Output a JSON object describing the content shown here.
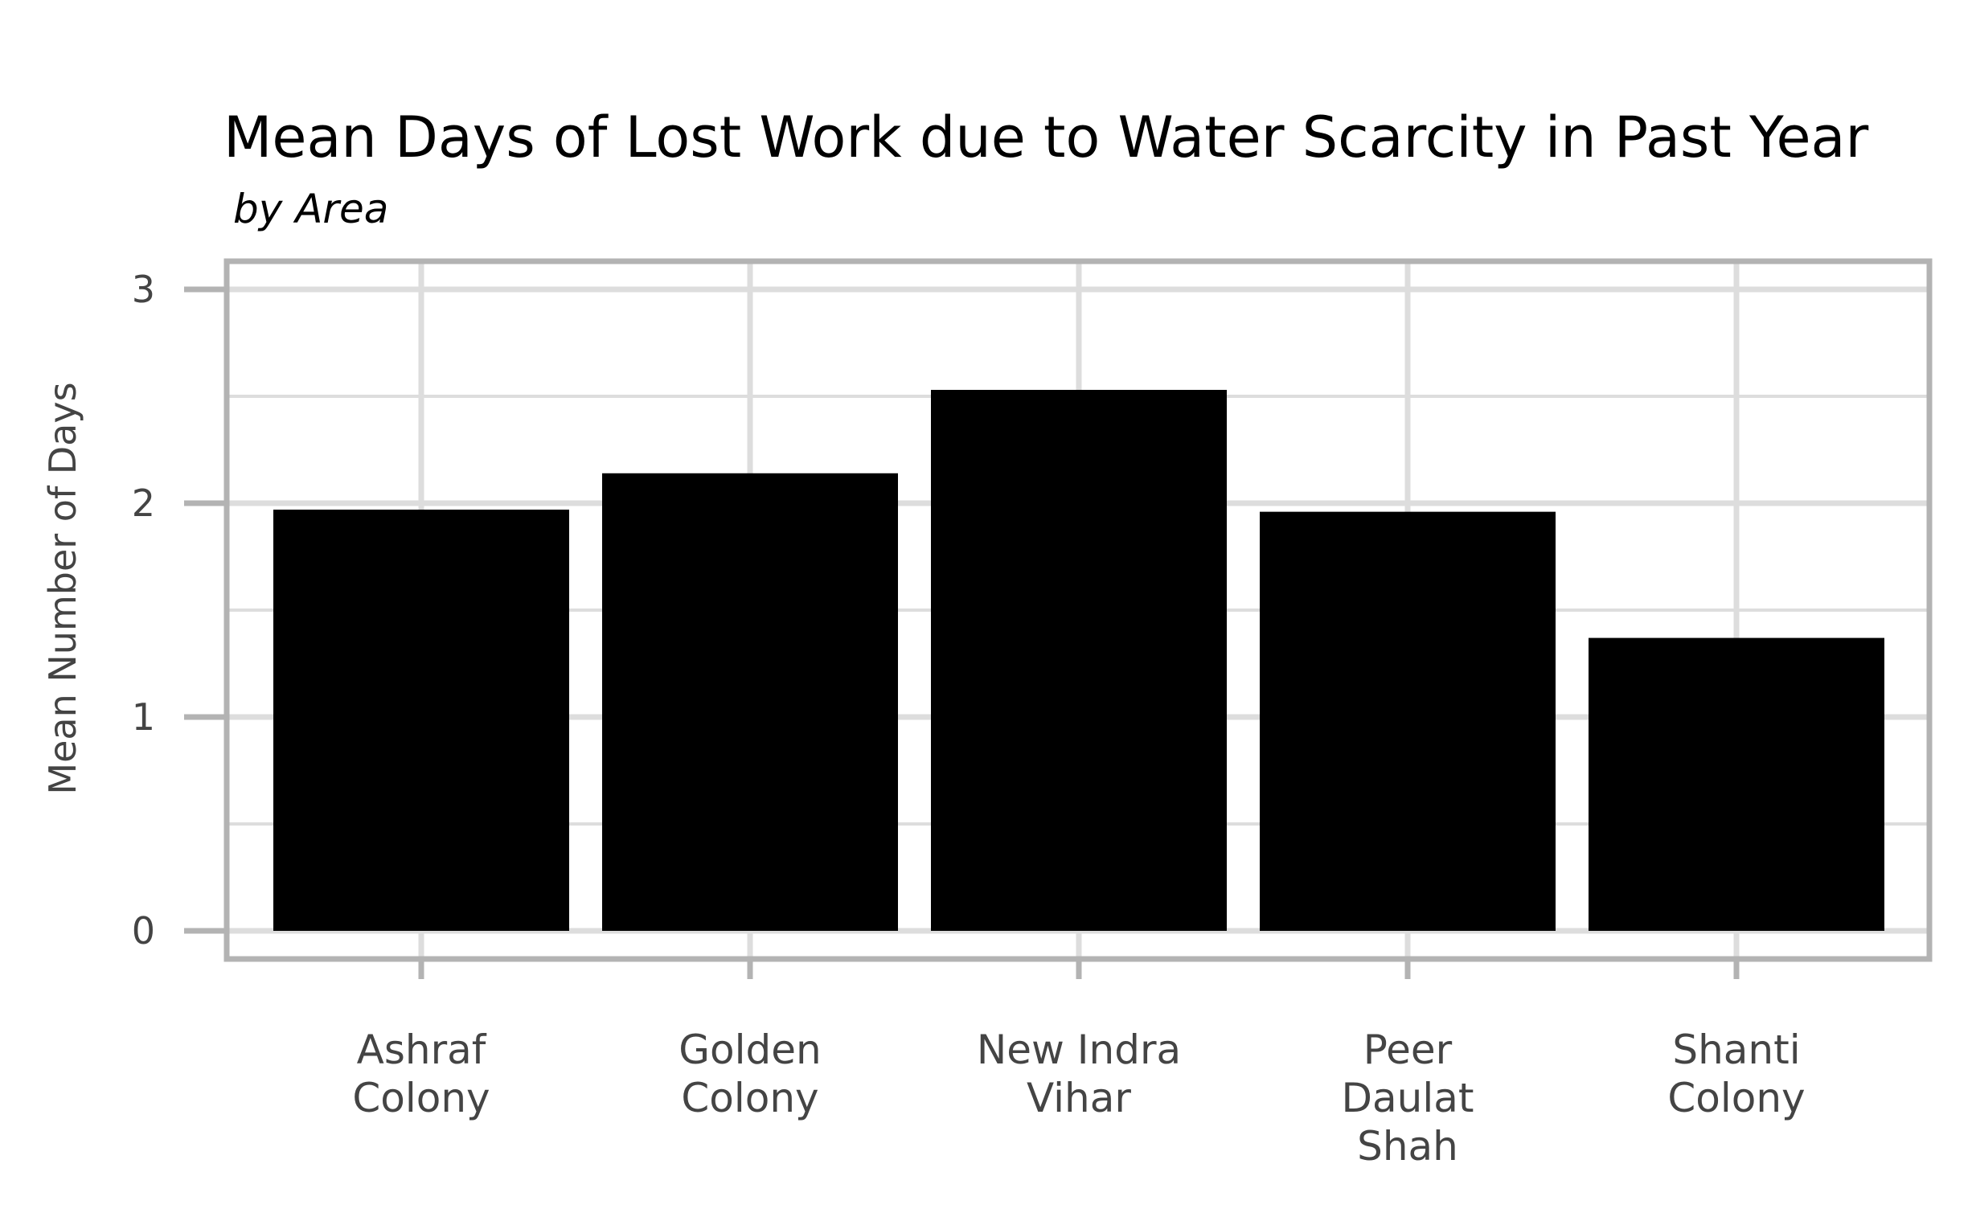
{
  "chart_data": {
    "type": "bar",
    "title": "Mean Days of Lost Work due to Water Scarcity in Past Year",
    "subtitle": "by Area",
    "xlabel": "",
    "ylabel": "Mean Number of Days",
    "categories": [
      "Ashraf Colony",
      "Golden Colony",
      "New Indra Vihar",
      "Peer Daulat Shah",
      "Shanti Colony"
    ],
    "category_lines": [
      [
        "Ashraf",
        "Colony"
      ],
      [
        "Golden",
        "Colony"
      ],
      [
        "New Indra",
        "Vihar"
      ],
      [
        "Peer",
        "Daulat",
        "Shah"
      ],
      [
        "Shanti",
        "Colony"
      ]
    ],
    "values": [
      1.97,
      2.14,
      2.53,
      1.96,
      1.37
    ],
    "ylim": [
      0,
      3
    ],
    "yticks": [
      0,
      1,
      2,
      3
    ],
    "grid": true,
    "bar_color": "#000000",
    "grid_color": "#dddddd",
    "frame_color": "#b3b3b3"
  }
}
